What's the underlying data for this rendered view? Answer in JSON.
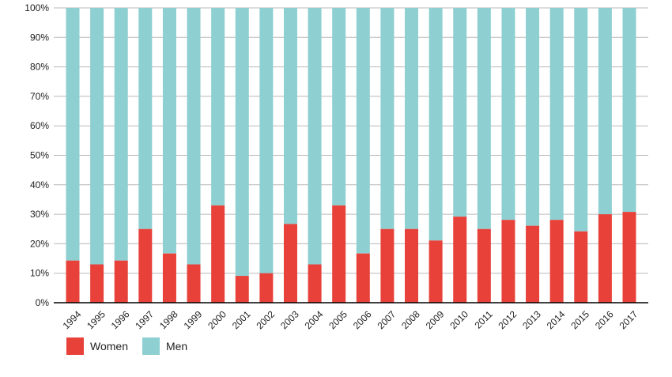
{
  "chart_data": {
    "type": "bar",
    "stacked": true,
    "categories": [
      "1994",
      "1995",
      "1996",
      "1997",
      "1998",
      "1999",
      "2000",
      "2001",
      "2002",
      "2003",
      "2004",
      "2005",
      "2006",
      "2007",
      "2008",
      "2009",
      "2010",
      "2011",
      "2012",
      "2013",
      "2014",
      "2015",
      "2016",
      "2017"
    ],
    "series": [
      {
        "name": "Women",
        "color": "#e8413a",
        "values": [
          14.3,
          13.0,
          14.3,
          25.0,
          16.7,
          13.0,
          33.0,
          9.1,
          10.0,
          26.7,
          13.0,
          33.0,
          16.7,
          25.0,
          25.0,
          21.1,
          29.2,
          25.0,
          28.1,
          26.1,
          28.1,
          24.2,
          30.0,
          30.8
        ]
      },
      {
        "name": "Men",
        "color": "#8ecfd1",
        "values": [
          85.7,
          87.0,
          85.7,
          75.0,
          83.3,
          87.0,
          67.0,
          90.9,
          90.0,
          73.3,
          87.0,
          67.0,
          83.3,
          75.0,
          75.0,
          78.9,
          70.8,
          75.0,
          71.9,
          73.9,
          71.9,
          75.8,
          70.0,
          69.2
        ]
      }
    ],
    "ylim": [
      0,
      100
    ],
    "yticks": [
      "0%",
      "10%",
      "20%",
      "30%",
      "40%",
      "50%",
      "60%",
      "70%",
      "80%",
      "90%",
      "100%"
    ],
    "grid": true,
    "legend_position": "bottom-left"
  }
}
